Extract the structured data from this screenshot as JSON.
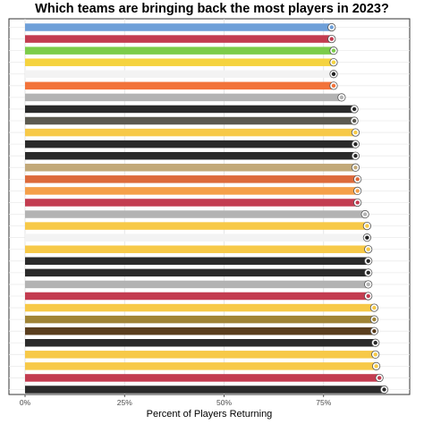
{
  "chart_data": {
    "type": "bar",
    "orientation": "horizontal",
    "title": "Which teams are bringing back the most players in 2023?",
    "xlabel": "Percent of Players Returning",
    "ylabel": "",
    "xlim": [
      0,
      1
    ],
    "x_ticks": [
      {
        "value": 0,
        "label": "0%"
      },
      {
        "value": 0.25,
        "label": "25%"
      },
      {
        "value": 0.5,
        "label": "50%"
      },
      {
        "value": 0.75,
        "label": "75%"
      }
    ],
    "grid": true,
    "legend": "none",
    "bars": [
      {
        "team_logo": "titans-logo-icon",
        "value": 0.768,
        "color": "#6e9fd8"
      },
      {
        "team_logo": "buccaneers-logo-icon",
        "value": 0.768,
        "color": "#c33c50"
      },
      {
        "team_logo": "seahawks-logo-icon",
        "value": 0.773,
        "color": "#7ccc4a"
      },
      {
        "team_logo": "chargers-logo-icon",
        "value": 0.773,
        "color": "#f5d33f"
      },
      {
        "team_logo": "raiders-logo-icon",
        "value": 0.773,
        "color": "#f3f3f3"
      },
      {
        "team_logo": "bears-logo-icon",
        "value": 0.773,
        "color": "#f2733a"
      },
      {
        "team_logo": "dolphins-logo-icon",
        "value": 0.793,
        "color": "#b3b3b3"
      },
      {
        "team_logo": "saints-logo-icon",
        "value": 0.825,
        "color": "#2a2a2a"
      },
      {
        "team_logo": "saints-logo-icon",
        "value": 0.825,
        "color": "#5c5a50"
      },
      {
        "team_logo": "chiefs-logo-icon",
        "value": 0.828,
        "color": "#f7c948"
      },
      {
        "team_logo": "jets-logo-icon",
        "value": 0.828,
        "color": "#2a2a2a"
      },
      {
        "team_logo": "falcons-logo-icon",
        "value": 0.828,
        "color": "#2a2a2a"
      },
      {
        "team_logo": "49ers-logo-icon",
        "value": 0.828,
        "color": "#c2a979"
      },
      {
        "team_logo": "browns-logo-icon",
        "value": 0.833,
        "color": "#dd6a3b"
      },
      {
        "team_logo": "dolphins-logo-icon",
        "value": 0.833,
        "color": "#f5a04a"
      },
      {
        "team_logo": "cardinals-logo-icon",
        "value": 0.833,
        "color": "#c33c50"
      },
      {
        "team_logo": "eagles-logo-icon",
        "value": 0.852,
        "color": "#b3b3b3"
      },
      {
        "team_logo": "rams-logo-icon",
        "value": 0.857,
        "color": "#f7c948"
      },
      {
        "team_logo": "cowboys-logo-icon",
        "value": 0.857,
        "color": "#f3f3f3"
      },
      {
        "team_logo": "packers-logo-icon",
        "value": 0.86,
        "color": "#f7c948"
      },
      {
        "team_logo": "panthers-logo-icon",
        "value": 0.86,
        "color": "#2a2a2a"
      },
      {
        "team_logo": "falcons-logo-icon",
        "value": 0.86,
        "color": "#2a2a2a"
      },
      {
        "team_logo": "colts-logo-icon",
        "value": 0.86,
        "color": "#b3b3b3"
      },
      {
        "team_logo": "giants-logo-icon",
        "value": 0.86,
        "color": "#c33c50"
      },
      {
        "team_logo": "steelers-logo-icon",
        "value": 0.875,
        "color": "#f7c948"
      },
      {
        "team_logo": "saints-logo-icon",
        "value": 0.875,
        "color": "#a08436"
      },
      {
        "team_logo": "browns-logo-icon",
        "value": 0.875,
        "color": "#5a3e1e"
      },
      {
        "team_logo": "bengals-logo-icon",
        "value": 0.878,
        "color": "#2a2a2a"
      },
      {
        "team_logo": "jaguars-logo-icon",
        "value": 0.878,
        "color": "#f7c948"
      },
      {
        "team_logo": "commanders-logo-icon",
        "value": 0.88,
        "color": "#f7c948"
      },
      {
        "team_logo": "vikings-logo-icon",
        "value": 0.888,
        "color": "#c33c50"
      },
      {
        "team_logo": "ravens-logo-icon",
        "value": 0.9,
        "color": "#2a2a2a"
      }
    ]
  }
}
